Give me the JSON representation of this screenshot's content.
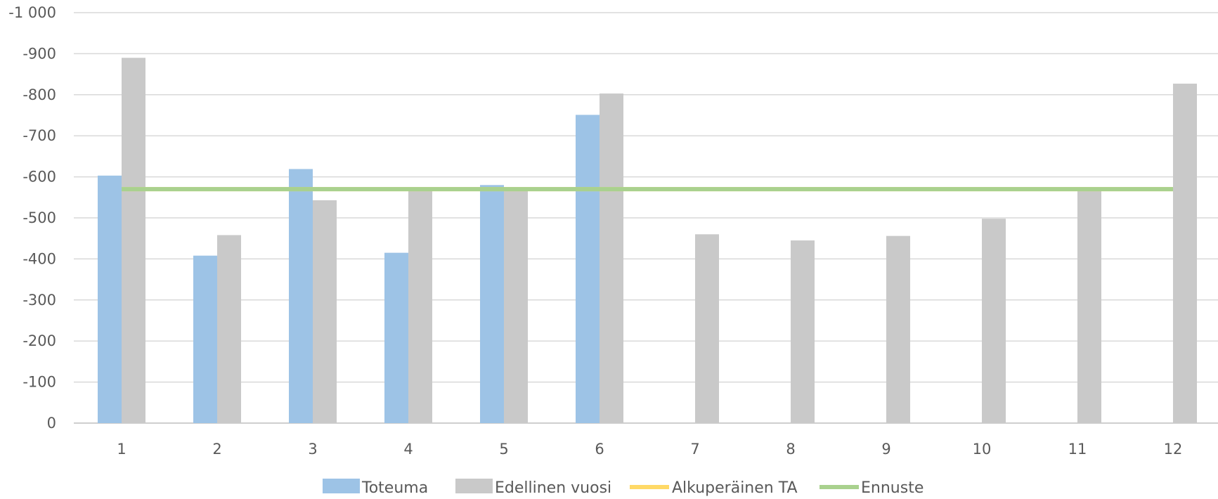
{
  "chart_data": {
    "type": "bar",
    "title": "",
    "xlabel": "",
    "ylabel": "",
    "categories": [
      "1",
      "2",
      "3",
      "4",
      "5",
      "6",
      "7",
      "8",
      "9",
      "10",
      "11",
      "12"
    ],
    "ylim": [
      0,
      -1000
    ],
    "y_ticks": [
      0,
      -100,
      -200,
      -300,
      -400,
      -500,
      -600,
      -700,
      -800,
      -900,
      -1000
    ],
    "y_tick_labels": [
      "0",
      "-100",
      "-200",
      "-300",
      "-400",
      "-500",
      "-600",
      "-700",
      "-800",
      "-900",
      "-1 000"
    ],
    "grid": true,
    "legend_position": "bottom",
    "series": [
      {
        "name": "Toteuma",
        "kind": "bar",
        "color": "#9DC3E6",
        "values": [
          -603,
          -408,
          -619,
          -415,
          -580,
          -751,
          null,
          null,
          null,
          null,
          null,
          null
        ]
      },
      {
        "name": "Edellinen vuosi",
        "kind": "bar",
        "color": "#C9C9C9",
        "values": [
          -890,
          -458,
          -543,
          -570,
          -570,
          -803,
          -460,
          -445,
          -456,
          -498,
          -570,
          -827
        ]
      },
      {
        "name": "Alkuperäinen TA",
        "kind": "line",
        "color": "#FFD966",
        "values": [
          -570,
          -570,
          -570,
          -570,
          -570,
          -570,
          -570,
          -570,
          -570,
          -570,
          -570,
          -570
        ]
      },
      {
        "name": "Ennuste",
        "kind": "line",
        "color": "#A9D18E",
        "values": [
          -570,
          -570,
          -570,
          -570,
          -570,
          -570,
          -570,
          -570,
          -570,
          -570,
          -570,
          -570
        ]
      }
    ]
  }
}
